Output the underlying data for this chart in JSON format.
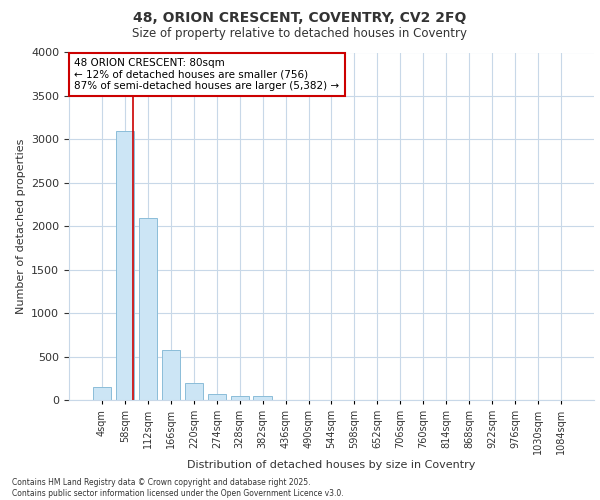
{
  "title_line1": "48, ORION CRESCENT, COVENTRY, CV2 2FQ",
  "title_line2": "Size of property relative to detached houses in Coventry",
  "xlabel": "Distribution of detached houses by size in Coventry",
  "ylabel": "Number of detached properties",
  "categories": [
    "4sqm",
    "58sqm",
    "112sqm",
    "166sqm",
    "220sqm",
    "274sqm",
    "328sqm",
    "382sqm",
    "436sqm",
    "490sqm",
    "544sqm",
    "598sqm",
    "652sqm",
    "706sqm",
    "760sqm",
    "814sqm",
    "868sqm",
    "922sqm",
    "976sqm",
    "1030sqm",
    "1084sqm"
  ],
  "values": [
    150,
    3100,
    2100,
    580,
    200,
    70,
    50,
    50,
    0,
    0,
    0,
    0,
    0,
    0,
    0,
    0,
    0,
    0,
    0,
    0,
    0
  ],
  "bar_color": "#cce5f5",
  "bar_edgecolor": "#8bbdd9",
  "vline_x_index": 1,
  "vline_x_offset": 0.35,
  "vline_color": "#cc0000",
  "annotation_text": "48 ORION CRESCENT: 80sqm\n← 12% of detached houses are smaller (756)\n87% of semi-detached houses are larger (5,382) →",
  "annotation_box_edgecolor": "#cc0000",
  "annotation_box_facecolor": "#ffffff",
  "ylim": [
    0,
    4000
  ],
  "yticks": [
    0,
    500,
    1000,
    1500,
    2000,
    2500,
    3000,
    3500,
    4000
  ],
  "footer_line1": "Contains HM Land Registry data © Crown copyright and database right 2025.",
  "footer_line2": "Contains public sector information licensed under the Open Government Licence v3.0.",
  "background_color": "#ffffff",
  "plot_background_color": "#ffffff",
  "grid_color": "#c8d8e8"
}
